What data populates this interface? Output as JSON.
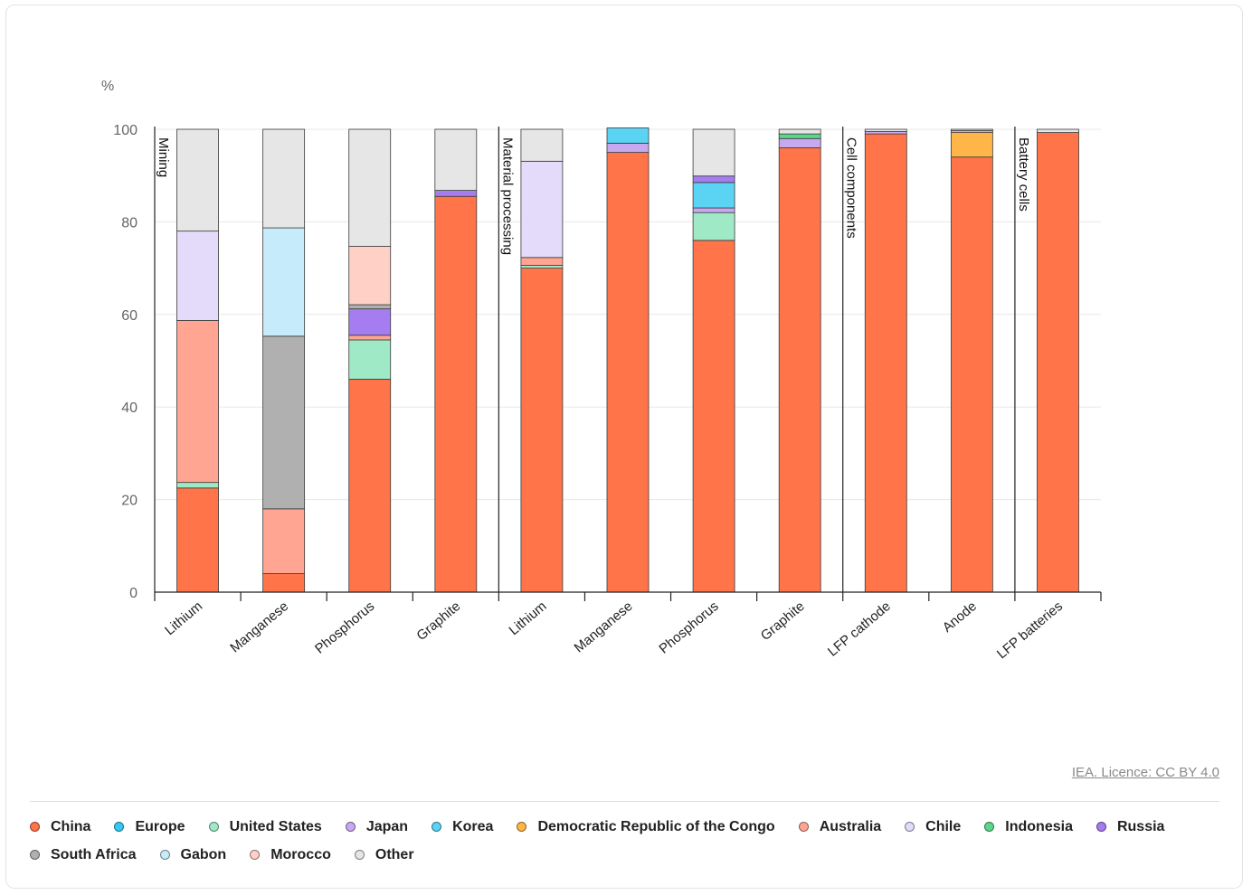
{
  "colors": {
    "China": "#ff7448",
    "Europe": "#36c9f5",
    "United States": "#9fe9c6",
    "Japan": "#c8a9f0",
    "Korea": "#5bd3f2",
    "Democratic Republic of the Congo": "#ffb547",
    "Australia": "#ffa592",
    "Chile": "#e4dbfa",
    "Indonesia": "#5cd68b",
    "Russia": "#a57df0",
    "South Africa": "#b0b0b0",
    "Gabon": "#c6ecfb",
    "Morocco": "#ffd0c6",
    "Other": "#e6e6e6"
  },
  "chart_data": {
    "type": "bar",
    "stacked": true,
    "ylabel": "%",
    "ylim": [
      0,
      100
    ],
    "yticks": [
      0,
      20,
      40,
      60,
      80,
      100
    ],
    "stages": [
      {
        "label": "Mining",
        "start": 0,
        "end": 3
      },
      {
        "label": "Material processing",
        "start": 4,
        "end": 7
      },
      {
        "label": "Cell components",
        "start": 8,
        "end": 9
      },
      {
        "label": "Battery cells",
        "start": 10,
        "end": 10
      }
    ],
    "categories": [
      "Lithium",
      "Manganese",
      "Phosphorus",
      "Graphite",
      "Lithium",
      "Manganese",
      "Phosphorus",
      "Graphite",
      "LFP cathode",
      "Anode",
      "LFP batteries"
    ],
    "series": [
      {
        "name": "China",
        "values": [
          22.5,
          4,
          46,
          85.5,
          70,
          95,
          76,
          96,
          99,
          94,
          99.3
        ]
      },
      {
        "name": "Europe",
        "values": [
          0,
          0,
          0,
          0,
          0,
          0,
          0,
          0,
          0,
          0,
          0
        ]
      },
      {
        "name": "United States",
        "values": [
          1.2,
          0,
          8.5,
          0,
          0.6,
          0,
          6,
          0,
          0,
          0,
          0
        ]
      },
      {
        "name": "Japan",
        "values": [
          0,
          0,
          0,
          0,
          0,
          2,
          1,
          2,
          0.5,
          0,
          0
        ]
      },
      {
        "name": "Korea",
        "values": [
          0,
          0,
          0,
          0,
          0,
          3.3,
          5.5,
          0,
          0,
          0,
          0
        ]
      },
      {
        "name": "Democratic Republic of the Congo",
        "values": [
          0,
          0,
          0,
          0,
          0,
          0,
          0,
          0,
          0,
          5.3,
          0
        ]
      },
      {
        "name": "Australia",
        "values": [
          35,
          14,
          1,
          0,
          1.7,
          0,
          0,
          0,
          0,
          0.4,
          0
        ]
      },
      {
        "name": "Chile",
        "values": [
          19.3,
          0,
          0,
          0,
          20.8,
          0,
          0,
          0,
          0,
          0,
          0
        ]
      },
      {
        "name": "Indonesia",
        "values": [
          0,
          0,
          0,
          0,
          0,
          0,
          0,
          1,
          0,
          0,
          0
        ]
      },
      {
        "name": "Russia",
        "values": [
          0,
          0,
          5.7,
          1.3,
          0,
          0,
          1.4,
          0,
          0,
          0,
          0
        ]
      },
      {
        "name": "South Africa",
        "values": [
          0,
          37.3,
          0.9,
          0,
          0,
          0,
          0,
          0,
          0,
          0,
          0
        ]
      },
      {
        "name": "Gabon",
        "values": [
          0,
          23.4,
          0,
          0,
          0,
          0,
          0,
          0,
          0,
          0,
          0
        ]
      },
      {
        "name": "Morocco",
        "values": [
          0,
          0,
          12.6,
          0,
          0,
          0,
          0,
          0,
          0,
          0,
          0
        ]
      },
      {
        "name": "Other",
        "values": [
          22,
          21.3,
          25.3,
          13.2,
          6.9,
          0,
          10.1,
          1,
          0.5,
          0.3,
          0.7
        ]
      }
    ]
  },
  "legend": [
    {
      "name": "China",
      "color": "#ff7448"
    },
    {
      "name": "Europe",
      "color": "#36c9f5"
    },
    {
      "name": "United States",
      "color": "#9fe9c6"
    },
    {
      "name": "Japan",
      "color": "#c8a9f0"
    },
    {
      "name": "Korea",
      "color": "#5bd3f2"
    },
    {
      "name": "Democratic Republic of the Congo",
      "color": "#ffb547"
    },
    {
      "name": "Australia",
      "color": "#ffa592"
    },
    {
      "name": "Chile",
      "color": "#e4dbfa"
    },
    {
      "name": "Indonesia",
      "color": "#5cd68b"
    },
    {
      "name": "Russia",
      "color": "#a57df0"
    },
    {
      "name": "South Africa",
      "color": "#b0b0b0"
    },
    {
      "name": "Gabon",
      "color": "#c6ecfb"
    },
    {
      "name": "Morocco",
      "color": "#ffd0c6"
    },
    {
      "name": "Other",
      "color": "#e6e6e6"
    }
  ],
  "credit": "IEA. Licence: CC BY 4.0"
}
